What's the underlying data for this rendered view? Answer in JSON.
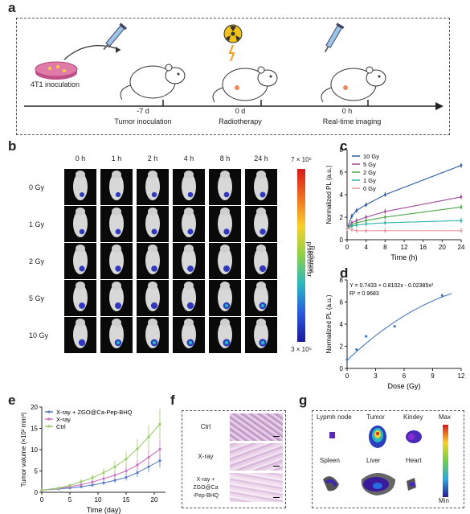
{
  "panel_labels": {
    "a": "a",
    "b": "b",
    "c": "c",
    "d": "d",
    "e": "e",
    "f": "f",
    "g": "g"
  },
  "panel_a": {
    "inoculation_label": "4T1 inoculation",
    "timeline": [
      {
        "time": "-7 d",
        "event": "Tumor inoculation"
      },
      {
        "time": "0 d",
        "event": "Radiotherapy"
      },
      {
        "time": "0 h",
        "event": "Real-time imaging"
      }
    ]
  },
  "panel_b": {
    "time_labels": [
      "0 h",
      "1 h",
      "2 h",
      "4 h",
      "8 h",
      "24 h"
    ],
    "dose_labels": [
      "0 Gy",
      "1 Gy",
      "2 Gy",
      "5 Gy",
      "10 Gy"
    ],
    "colorbar_max": "7 × 10⁶",
    "colorbar_min": "3 × 10⁵",
    "colorbar_title": "Radiance",
    "colorbar_unit": "p/sec/cm²/sr"
  },
  "chart_data": [
    {
      "id": "c",
      "type": "line",
      "xlabel": "Time (h)",
      "ylabel": "Normalized PL (a.u.)",
      "xlim": [
        0,
        24
      ],
      "ylim": [
        0,
        8
      ],
      "xticks": [
        0,
        4,
        8,
        12,
        16,
        20,
        24
      ],
      "yticks": [
        0,
        2,
        4,
        6,
        8
      ],
      "x": [
        0,
        1,
        2,
        4,
        8,
        24
      ],
      "series": [
        {
          "name": "10 Gy",
          "color": "#2a5ba8",
          "values": [
            1.0,
            2.1,
            2.6,
            3.1,
            4.0,
            6.6
          ]
        },
        {
          "name": "5 Gy",
          "color": "#a04a9a",
          "values": [
            1.0,
            1.5,
            1.7,
            2.0,
            2.5,
            3.8
          ]
        },
        {
          "name": "2 Gy",
          "color": "#4aa84a",
          "values": [
            1.0,
            1.3,
            1.5,
            1.7,
            2.0,
            2.9
          ]
        },
        {
          "name": "1 Gy",
          "color": "#2bb5a8",
          "values": [
            1.0,
            1.2,
            1.3,
            1.4,
            1.5,
            1.7
          ]
        },
        {
          "name": "0 Gy",
          "color": "#e89aa0",
          "values": [
            1.0,
            0.9,
            0.8,
            0.8,
            0.8,
            0.8
          ]
        }
      ]
    },
    {
      "id": "d",
      "type": "scatter",
      "xlabel": "Dose (Gy)",
      "ylabel": "Normalized PL (a.u.)",
      "xlim": [
        0,
        12
      ],
      "ylim": [
        0,
        8
      ],
      "xticks": [
        0,
        3,
        6,
        9,
        12
      ],
      "yticks": [
        0,
        2,
        4,
        6,
        8
      ],
      "equation": "Y = 0.7433 + 0.8102x - 0.02385x²",
      "r2": "R² = 0.9683",
      "points": [
        {
          "x": 0,
          "y": 0.8
        },
        {
          "x": 1,
          "y": 1.7
        },
        {
          "x": 2,
          "y": 2.9
        },
        {
          "x": 5,
          "y": 3.8
        },
        {
          "x": 10,
          "y": 6.6
        }
      ],
      "fit": {
        "a": 0.7433,
        "b": 0.8102,
        "c": -0.02385
      }
    },
    {
      "id": "e",
      "type": "line",
      "xlabel": "Time (day)",
      "ylabel": "Tumor volume (×10² mm³)",
      "xlim": [
        0,
        22
      ],
      "ylim": [
        0,
        20
      ],
      "xticks": [
        0,
        5,
        10,
        15,
        20
      ],
      "yticks": [
        0,
        5,
        10,
        15,
        20
      ],
      "x": [
        0,
        3,
        5,
        7,
        9,
        11,
        13,
        15,
        17,
        19,
        21
      ],
      "series": [
        {
          "name": "X-ray + ZGO@Ca-Pep-BHQ",
          "color": "#5b7ec9",
          "values": [
            0.5,
            0.8,
            1.0,
            1.3,
            1.7,
            2.2,
            2.8,
            3.5,
            4.6,
            6.0,
            7.4
          ]
        },
        {
          "name": "X-ray",
          "color": "#c977c4",
          "values": [
            0.5,
            0.9,
            1.3,
            1.8,
            2.4,
            3.2,
            4.0,
            5.0,
            6.4,
            8.2,
            10.1
          ]
        },
        {
          "name": "Ctrl",
          "color": "#9ccc6a",
          "values": [
            0.5,
            1.0,
            1.6,
            2.5,
            3.4,
            4.6,
            6.0,
            7.8,
            10.2,
            13.0,
            16.0
          ]
        }
      ]
    }
  ],
  "panel_f": {
    "rows": [
      "Ctrl",
      "X-ray",
      "X-ray +\nZGO@Ca\n-Pep-BHQ"
    ]
  },
  "panel_g": {
    "organs": [
      "Lypmh node",
      "Tumor",
      "Kindey",
      "Spleen",
      "Liver",
      "Heart"
    ],
    "max_label": "Max",
    "min_label": "Min"
  }
}
